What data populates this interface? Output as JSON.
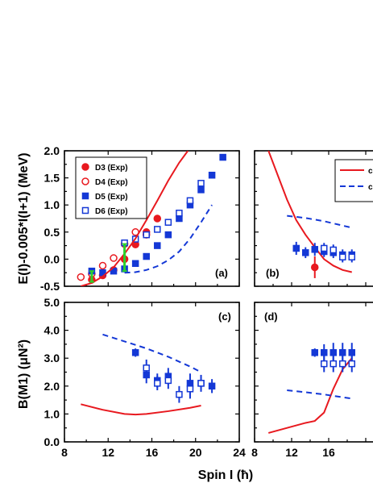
{
  "colors": {
    "red": "#e8191f",
    "blue": "#1438d6",
    "green": "#2bd12b",
    "axis": "#000000"
  },
  "chart_data": {
    "type": "scatter",
    "xlabel": "Spin I (ħ)",
    "panels": [
      {
        "id": "a",
        "label": "(a)",
        "ylabel": "E(I)-0.005*I(I+1) (MeV)",
        "xlim": [
          8,
          24
        ],
        "ylim": [
          -0.5,
          2.0
        ],
        "yticks": [
          "-0.5",
          "0.0",
          "0.5",
          "1.0",
          "1.5",
          "2.0"
        ],
        "ytick_values": [
          -0.5,
          0.0,
          0.5,
          1.0,
          1.5,
          2.0
        ],
        "legend": {
          "position": "top-left",
          "entries": [
            "D3 (Exp)",
            "D4 (Exp)",
            "D5 (Exp)",
            "D6 (Exp)"
          ]
        },
        "series": [
          {
            "name": "D3 (Exp)",
            "marker": "filled-circle",
            "color": "red",
            "x": [
              10.5,
              11.5,
              12.5,
              13.5,
              14.5,
              15.5,
              16.5
            ],
            "y": [
              -0.38,
              -0.3,
              -0.2,
              0.0,
              0.27,
              0.5,
              0.75
            ]
          },
          {
            "name": "D4 (Exp)",
            "marker": "open-circle",
            "color": "red",
            "x": [
              9.5,
              10.5,
              11.5,
              12.5,
              13.5,
              14.5,
              15.5
            ],
            "y": [
              -0.33,
              -0.27,
              -0.12,
              0.02,
              0.28,
              0.5,
              0.45
            ]
          },
          {
            "name": "D5 (Exp)",
            "marker": "filled-square",
            "color": "blue",
            "x": [
              10.5,
              11.5,
              12.5,
              13.5,
              14.5,
              15.5,
              16.5,
              17.5,
              18.5,
              19.5,
              20.5,
              21.5,
              22.5
            ],
            "y": [
              -0.22,
              -0.25,
              -0.22,
              -0.18,
              -0.08,
              0.05,
              0.25,
              0.45,
              0.75,
              1.0,
              1.28,
              1.55,
              1.88
            ]
          },
          {
            "name": "D6 (Exp)",
            "marker": "open-square",
            "color": "blue",
            "x": [
              13.5,
              14.5,
              15.5,
              16.5,
              17.5,
              18.5,
              19.5,
              20.5
            ],
            "y": [
              0.3,
              0.37,
              0.45,
              0.55,
              0.68,
              0.85,
              1.08,
              1.4
            ]
          },
          {
            "name": "",
            "marker": "line-solid",
            "color": "red",
            "x": [
              9.5,
              10.5,
              11.5,
              12.5,
              13.5,
              14.5,
              15.5,
              16.5,
              17.5,
              18.5,
              19.3
            ],
            "y": [
              -0.5,
              -0.44,
              -0.32,
              -0.15,
              0.1,
              0.38,
              0.72,
              1.08,
              1.45,
              1.78,
              2.0
            ]
          },
          {
            "name": "",
            "marker": "line-dashed",
            "color": "blue",
            "x": [
              13.5,
              14.5,
              15.5,
              16.5,
              17.5,
              18.5,
              19.5,
              20.5,
              21.5
            ],
            "y": [
              -0.25,
              -0.24,
              -0.2,
              -0.13,
              -0.02,
              0.14,
              0.38,
              0.68,
              1.0
            ]
          },
          {
            "name": "",
            "marker": "green-bar",
            "color": "green",
            "x": [
              10.5,
              13.5
            ],
            "y_low": [
              -0.42,
              -0.22
            ],
            "y_high": [
              -0.22,
              0.28
            ]
          }
        ]
      },
      {
        "id": "b",
        "label": "(b)",
        "xlim": [
          8,
          24
        ],
        "ylim": [
          -0.5,
          2.0
        ],
        "legend": {
          "position": "top-right",
          "entries": [
            "c",
            "c"
          ]
        },
        "series": [
          {
            "name": "",
            "marker": "line-solid",
            "color": "red",
            "x": [
              9.5,
              10.5,
              11.5,
              12.5,
              13.5,
              14.5,
              15.5,
              16.5,
              17.5,
              18.5
            ],
            "y": [
              2.0,
              1.55,
              1.1,
              0.72,
              0.45,
              0.22,
              0.0,
              -0.12,
              -0.2,
              -0.24
            ]
          },
          {
            "name": "",
            "marker": "line-dashed",
            "color": "blue",
            "x": [
              11.5,
              12.5,
              13.5,
              14.5,
              15.5,
              16.5,
              17.5,
              18.5
            ],
            "y": [
              0.8,
              0.78,
              0.76,
              0.73,
              0.7,
              0.66,
              0.62,
              0.58
            ]
          },
          {
            "name": "",
            "marker": "filled-square-err",
            "color": "blue",
            "x": [
              12.5,
              13.5,
              14.5,
              15.5,
              16.5,
              17.5,
              18.5
            ],
            "y": [
              0.2,
              0.12,
              0.18,
              0.14,
              0.12,
              0.08,
              0.08
            ],
            "err": [
              0.12,
              0.1,
              0.12,
              0.1,
              0.1,
              0.1,
              0.1
            ]
          },
          {
            "name": "",
            "marker": "open-square-err",
            "color": "blue",
            "x": [
              15.5,
              16.5,
              17.5,
              18.5
            ],
            "y": [
              0.2,
              0.17,
              0.04,
              0.04
            ],
            "err": [
              0.1,
              0.1,
              0.1,
              0.1
            ]
          },
          {
            "name": "",
            "marker": "filled-circle-err",
            "color": "red",
            "x": [
              14.5
            ],
            "y": [
              -0.15
            ],
            "err": [
              0.2
            ]
          }
        ]
      },
      {
        "id": "c",
        "label": "(c)",
        "ylabel": "B(M1) (μN²)",
        "xlim": [
          8,
          24
        ],
        "ylim": [
          0.0,
          5.0
        ],
        "yticks": [
          "0.0",
          "1.0",
          "2.0",
          "3.0",
          "4.0",
          "5.0"
        ],
        "ytick_values": [
          0.0,
          1.0,
          2.0,
          3.0,
          4.0,
          5.0
        ],
        "xticks": [
          "8",
          "12",
          "16",
          "20",
          "24"
        ],
        "xtick_values": [
          8,
          12,
          16,
          20,
          24
        ],
        "series": [
          {
            "name": "",
            "marker": "line-solid",
            "color": "red",
            "x": [
              9.5,
              11.5,
              13.5,
              14.5,
              15.5,
              17.5,
              19.5,
              20.5
            ],
            "y": [
              1.35,
              1.15,
              1.0,
              0.98,
              1.0,
              1.1,
              1.22,
              1.3
            ]
          },
          {
            "name": "",
            "marker": "line-dashed",
            "color": "blue",
            "x": [
              11.5,
              13.5,
              15.5,
              17.5,
              19.5,
              20.5
            ],
            "y": [
              3.85,
              3.6,
              3.35,
              3.05,
              2.7,
              2.5
            ]
          },
          {
            "name": "",
            "marker": "filled-square-err",
            "color": "blue",
            "x": [
              14.5,
              15.5,
              16.5,
              17.5,
              19.5,
              20.5,
              21.5
            ],
            "y": [
              3.2,
              2.4,
              2.2,
              2.35,
              2.1,
              2.1,
              2.0
            ],
            "err": [
              0.15,
              0.3,
              0.25,
              0.3,
              0.35,
              0.3,
              0.25
            ]
          },
          {
            "name": "",
            "marker": "open-square-err",
            "color": "blue",
            "x": [
              15.5,
              16.5,
              17.5,
              18.5,
              19.5,
              20.5
            ],
            "y": [
              2.65,
              2.1,
              2.2,
              1.7,
              1.9,
              2.1
            ],
            "err": [
              0.3,
              0.25,
              0.3,
              0.3,
              0.35,
              0.3
            ]
          }
        ]
      },
      {
        "id": "d",
        "label": "(d)",
        "xlim": [
          8,
          24
        ],
        "ylim": [
          0.0,
          5.0
        ],
        "xticks": [
          "8",
          "12",
          "16"
        ],
        "xtick_values": [
          8,
          12,
          16
        ],
        "series": [
          {
            "name": "",
            "marker": "line-solid",
            "color": "red",
            "x": [
              9.5,
              11.5,
              13.5,
              14.5,
              15.5,
              16.5,
              17.5,
              18.5
            ],
            "y": [
              0.32,
              0.5,
              0.68,
              0.75,
              1.05,
              1.9,
              2.6,
              3.0
            ]
          },
          {
            "name": "",
            "marker": "line-dashed",
            "color": "blue",
            "x": [
              11.5,
              13.5,
              15.5,
              17.5,
              18.5
            ],
            "y": [
              1.85,
              1.78,
              1.7,
              1.6,
              1.55
            ]
          },
          {
            "name": "",
            "marker": "filled-square-err",
            "color": "blue",
            "x": [
              14.5,
              15.5,
              16.5,
              17.5,
              18.5
            ],
            "y": [
              3.2,
              3.2,
              3.2,
              3.2,
              3.2
            ],
            "err": [
              0.15,
              0.3,
              0.35,
              0.35,
              0.35
            ]
          },
          {
            "name": "",
            "marker": "open-square-err",
            "color": "blue",
            "x": [
              15.5,
              16.5,
              17.5,
              18.5
            ],
            "y": [
              2.8,
              2.8,
              2.8,
              2.8
            ],
            "err": [
              0.3,
              0.3,
              0.3,
              0.3
            ]
          }
        ]
      }
    ]
  }
}
